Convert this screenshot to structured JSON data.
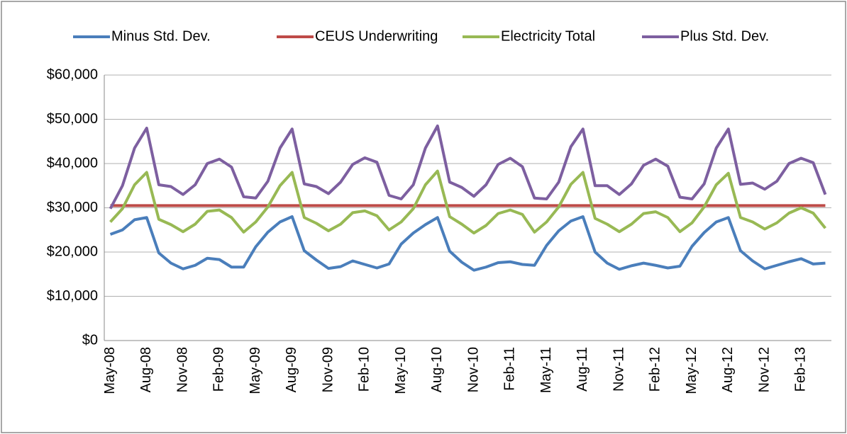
{
  "chart_data": {
    "type": "line",
    "categories": [
      "May-08",
      null,
      null,
      "Aug-08",
      null,
      null,
      "Nov-08",
      null,
      null,
      "Feb-09",
      null,
      null,
      "May-09",
      null,
      null,
      "Aug-09",
      null,
      null,
      "Nov-09",
      null,
      null,
      "Feb-10",
      null,
      null,
      "May-10",
      null,
      null,
      "Aug-10",
      null,
      null,
      "Nov-10",
      null,
      null,
      "Feb-11",
      null,
      null,
      "May-11",
      null,
      null,
      "Aug-11",
      null,
      null,
      "Nov-11",
      null,
      null,
      "Feb-12",
      null,
      null,
      "May-12",
      null,
      null,
      "Aug-12",
      null,
      null,
      "Nov-12",
      null,
      null,
      "Feb-13",
      null,
      null
    ],
    "series": [
      {
        "name": "Minus Std. Dev.",
        "color": "#4a7ebb",
        "values": [
          24000,
          25000,
          27300,
          27800,
          19800,
          17500,
          16200,
          17000,
          18600,
          18300,
          16600,
          16600,
          21200,
          24500,
          26800,
          28000,
          20300,
          18200,
          16300,
          16700,
          18000,
          17200,
          16400,
          17300,
          21800,
          24300,
          26200,
          27800,
          20200,
          17700,
          15900,
          16600,
          17600,
          17800,
          17200,
          17000,
          21500,
          24800,
          27000,
          28000,
          20000,
          17500,
          16100,
          16900,
          17500,
          17000,
          16400,
          16800,
          21300,
          24400,
          26800,
          27800,
          20300,
          18000,
          16200,
          17000,
          17800,
          18500,
          17300,
          17500
        ]
      },
      {
        "name": "CEUS Underwriting",
        "color": "#be4b48",
        "values": [
          30500,
          30500,
          30500,
          30500,
          30500,
          30500,
          30500,
          30500,
          30500,
          30500,
          30500,
          30500,
          30500,
          30500,
          30500,
          30500,
          30500,
          30500,
          30500,
          30500,
          30500,
          30500,
          30500,
          30500,
          30500,
          30500,
          30500,
          30500,
          30500,
          30500,
          30500,
          30500,
          30500,
          30500,
          30500,
          30500,
          30500,
          30500,
          30500,
          30500,
          30500,
          30500,
          30500,
          30500,
          30500,
          30500,
          30500,
          30500,
          30500,
          30500,
          30500,
          30500,
          30500,
          30500,
          30500,
          30500,
          30500,
          30500,
          30500,
          30500
        ]
      },
      {
        "name": "Electricity Total",
        "color": "#98b954",
        "values": [
          26800,
          29800,
          35200,
          38000,
          27400,
          26200,
          24600,
          26300,
          29200,
          29500,
          27800,
          24500,
          26800,
          30200,
          35000,
          38000,
          27800,
          26500,
          24800,
          26300,
          28900,
          29300,
          28200,
          25000,
          26800,
          29800,
          35200,
          38300,
          28000,
          26300,
          24300,
          26000,
          28700,
          29500,
          28500,
          24500,
          26800,
          30200,
          35300,
          38000,
          27600,
          26300,
          24600,
          26300,
          28700,
          29100,
          27800,
          24600,
          26600,
          30200,
          35200,
          37800,
          27800,
          26800,
          25200,
          26600,
          28800,
          30000,
          28800,
          25400
        ]
      },
      {
        "name": "Plus Std. Dev.",
        "color": "#7d5fa0",
        "values": [
          29800,
          35000,
          43500,
          48000,
          35200,
          34800,
          33000,
          35200,
          40000,
          41000,
          39200,
          32500,
          32200,
          36000,
          43500,
          47800,
          35400,
          34800,
          33200,
          35800,
          39800,
          41300,
          40300,
          32800,
          32000,
          35200,
          43500,
          48500,
          35800,
          34600,
          32600,
          35200,
          39800,
          41200,
          39300,
          32200,
          32000,
          35800,
          43800,
          47800,
          35000,
          35000,
          33000,
          35400,
          39600,
          41000,
          39400,
          32400,
          32000,
          35400,
          43500,
          47800,
          35300,
          35600,
          34200,
          36000,
          40000,
          41200,
          40200,
          33000
        ]
      }
    ],
    "ylim": [
      0,
      60000
    ],
    "yticks": [
      {
        "value": 0,
        "label": "$0"
      },
      {
        "value": 10000,
        "label": "$10,000"
      },
      {
        "value": 20000,
        "label": "$20,000"
      },
      {
        "value": 30000,
        "label": "$30,000"
      },
      {
        "value": 40000,
        "label": "$40,000"
      },
      {
        "value": 50000,
        "label": "$50,000"
      },
      {
        "value": 60000,
        "label": "$60,000"
      }
    ],
    "grid": true,
    "legend": "top"
  }
}
